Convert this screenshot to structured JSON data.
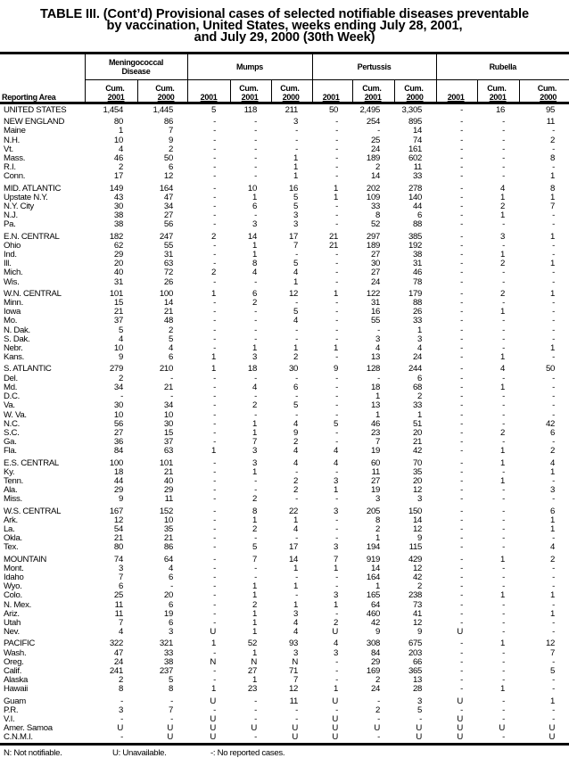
{
  "title": {
    "line1": "TABLE III. (Cont’d) Provisional cases of selected notifiable diseases preventable",
    "line2": "by vaccination, United States, weeks ending July 28, 2001,",
    "line3": "and July 29, 2000 (30th Week)"
  },
  "table": {
    "area_header": "Reporting Area",
    "disease_groups": [
      {
        "label": "Meningococcal Disease",
        "sub": [
          [
            "Cum.",
            "2001"
          ],
          [
            "Cum.",
            "2000"
          ]
        ]
      },
      {
        "label": "Mumps",
        "sub": [
          [
            "",
            "2001"
          ],
          [
            "Cum.",
            "2001"
          ],
          [
            "Cum.",
            "2000"
          ]
        ]
      },
      {
        "label": "Pertussis",
        "sub": [
          [
            "",
            "2001"
          ],
          [
            "Cum.",
            "2001"
          ],
          [
            "Cum.",
            "2000"
          ]
        ]
      },
      {
        "label": "Rubella",
        "sub": [
          [
            "",
            "2001"
          ],
          [
            "Cum.",
            "2001"
          ],
          [
            "Cum.",
            "2000"
          ]
        ]
      }
    ],
    "groups": [
      [
        [
          "UNITED STATES",
          "1,454",
          "1,445",
          "5",
          "118",
          "211",
          "50",
          "2,495",
          "3,305",
          "-",
          "16",
          "95"
        ]
      ],
      [
        [
          "NEW ENGLAND",
          "80",
          "86",
          "-",
          "-",
          "3",
          "-",
          "254",
          "895",
          "-",
          "-",
          "11"
        ],
        [
          "Maine",
          "1",
          "7",
          "-",
          "-",
          "-",
          "-",
          "-",
          "14",
          "-",
          "-",
          "-"
        ],
        [
          "N.H.",
          "10",
          "9",
          "-",
          "-",
          "-",
          "-",
          "25",
          "74",
          "-",
          "-",
          "2"
        ],
        [
          "Vt.",
          "4",
          "2",
          "-",
          "-",
          "-",
          "-",
          "24",
          "161",
          "-",
          "-",
          "-"
        ],
        [
          "Mass.",
          "46",
          "50",
          "-",
          "-",
          "1",
          "-",
          "189",
          "602",
          "-",
          "-",
          "8"
        ],
        [
          "R.I.",
          "2",
          "6",
          "-",
          "-",
          "1",
          "-",
          "2",
          "11",
          "-",
          "-",
          "-"
        ],
        [
          "Conn.",
          "17",
          "12",
          "-",
          "-",
          "1",
          "-",
          "14",
          "33",
          "-",
          "-",
          "1"
        ]
      ],
      [
        [
          "MID. ATLANTIC",
          "149",
          "164",
          "-",
          "10",
          "16",
          "1",
          "202",
          "278",
          "-",
          "4",
          "8"
        ],
        [
          "Upstate N.Y.",
          "43",
          "47",
          "-",
          "1",
          "5",
          "1",
          "109",
          "140",
          "-",
          "1",
          "1"
        ],
        [
          "N.Y. City",
          "30",
          "34",
          "-",
          "6",
          "5",
          "-",
          "33",
          "44",
          "-",
          "2",
          "7"
        ],
        [
          "N.J.",
          "38",
          "27",
          "-",
          "-",
          "3",
          "-",
          "8",
          "6",
          "-",
          "1",
          "-"
        ],
        [
          "Pa.",
          "38",
          "56",
          "-",
          "3",
          "3",
          "-",
          "52",
          "88",
          "-",
          "-",
          "-"
        ]
      ],
      [
        [
          "E.N. CENTRAL",
          "182",
          "247",
          "2",
          "14",
          "17",
          "21",
          "297",
          "385",
          "-",
          "3",
          "1"
        ],
        [
          "Ohio",
          "62",
          "55",
          "-",
          "1",
          "7",
          "21",
          "189",
          "192",
          "-",
          "-",
          "-"
        ],
        [
          "Ind.",
          "29",
          "31",
          "-",
          "1",
          "-",
          "-",
          "27",
          "38",
          "-",
          "1",
          "-"
        ],
        [
          "Ill.",
          "20",
          "63",
          "-",
          "8",
          "5",
          "-",
          "30",
          "31",
          "-",
          "2",
          "1"
        ],
        [
          "Mich.",
          "40",
          "72",
          "2",
          "4",
          "4",
          "-",
          "27",
          "46",
          "-",
          "-",
          "-"
        ],
        [
          "Wis.",
          "31",
          "26",
          "-",
          "-",
          "1",
          "-",
          "24",
          "78",
          "-",
          "-",
          "-"
        ]
      ],
      [
        [
          "W.N. CENTRAL",
          "101",
          "100",
          "1",
          "6",
          "12",
          "1",
          "122",
          "179",
          "-",
          "2",
          "1"
        ],
        [
          "Minn.",
          "15",
          "14",
          "-",
          "2",
          "-",
          "-",
          "31",
          "88",
          "-",
          "-",
          "-"
        ],
        [
          "Iowa",
          "21",
          "21",
          "-",
          "-",
          "5",
          "-",
          "16",
          "26",
          "-",
          "1",
          "-"
        ],
        [
          "Mo.",
          "37",
          "48",
          "-",
          "-",
          "4",
          "-",
          "55",
          "33",
          "-",
          "-",
          "-"
        ],
        [
          "N. Dak.",
          "5",
          "2",
          "-",
          "-",
          "-",
          "-",
          "-",
          "1",
          "-",
          "-",
          "-"
        ],
        [
          "S. Dak.",
          "4",
          "5",
          "-",
          "-",
          "-",
          "-",
          "3",
          "3",
          "-",
          "-",
          "-"
        ],
        [
          "Nebr.",
          "10",
          "4",
          "-",
          "1",
          "1",
          "1",
          "4",
          "4",
          "-",
          "-",
          "1"
        ],
        [
          "Kans.",
          "9",
          "6",
          "1",
          "3",
          "2",
          "-",
          "13",
          "24",
          "-",
          "1",
          "-"
        ]
      ],
      [
        [
          "S. ATLANTIC",
          "279",
          "210",
          "1",
          "18",
          "30",
          "9",
          "128",
          "244",
          "-",
          "4",
          "50"
        ],
        [
          "Del.",
          "2",
          "-",
          "-",
          "-",
          "-",
          "-",
          "-",
          "6",
          "-",
          "-",
          "-"
        ],
        [
          "Md.",
          "34",
          "21",
          "-",
          "4",
          "6",
          "-",
          "18",
          "68",
          "-",
          "1",
          "-"
        ],
        [
          "D.C.",
          "-",
          "-",
          "-",
          "-",
          "-",
          "-",
          "1",
          "2",
          "-",
          "-",
          "-"
        ],
        [
          "Va.",
          "30",
          "34",
          "-",
          "2",
          "5",
          "-",
          "13",
          "33",
          "-",
          "-",
          "-"
        ],
        [
          "W. Va.",
          "10",
          "10",
          "-",
          "-",
          "-",
          "-",
          "1",
          "1",
          "-",
          "-",
          "-"
        ],
        [
          "N.C.",
          "56",
          "30",
          "-",
          "1",
          "4",
          "5",
          "46",
          "51",
          "-",
          "-",
          "42"
        ],
        [
          "S.C.",
          "27",
          "15",
          "-",
          "1",
          "9",
          "-",
          "23",
          "20",
          "-",
          "2",
          "6"
        ],
        [
          "Ga.",
          "36",
          "37",
          "-",
          "7",
          "2",
          "-",
          "7",
          "21",
          "-",
          "-",
          "-"
        ],
        [
          "Fla.",
          "84",
          "63",
          "1",
          "3",
          "4",
          "4",
          "19",
          "42",
          "-",
          "1",
          "2"
        ]
      ],
      [
        [
          "E.S. CENTRAL",
          "100",
          "101",
          "-",
          "3",
          "4",
          "4",
          "60",
          "70",
          "-",
          "1",
          "4"
        ],
        [
          "Ky.",
          "18",
          "21",
          "-",
          "1",
          "-",
          "-",
          "11",
          "35",
          "-",
          "-",
          "1"
        ],
        [
          "Tenn.",
          "44",
          "40",
          "-",
          "-",
          "2",
          "3",
          "27",
          "20",
          "-",
          "1",
          "-"
        ],
        [
          "Ala.",
          "29",
          "29",
          "-",
          "-",
          "2",
          "1",
          "19",
          "12",
          "-",
          "-",
          "3"
        ],
        [
          "Miss.",
          "9",
          "11",
          "-",
          "2",
          "-",
          "-",
          "3",
          "3",
          "-",
          "-",
          "-"
        ]
      ],
      [
        [
          "W.S. CENTRAL",
          "167",
          "152",
          "-",
          "8",
          "22",
          "3",
          "205",
          "150",
          "-",
          "-",
          "6"
        ],
        [
          "Ark.",
          "12",
          "10",
          "-",
          "1",
          "1",
          "-",
          "8",
          "14",
          "-",
          "-",
          "1"
        ],
        [
          "La.",
          "54",
          "35",
          "-",
          "2",
          "4",
          "-",
          "2",
          "12",
          "-",
          "-",
          "1"
        ],
        [
          "Okla.",
          "21",
          "21",
          "-",
          "-",
          "-",
          "-",
          "1",
          "9",
          "-",
          "-",
          "-"
        ],
        [
          "Tex.",
          "80",
          "86",
          "-",
          "5",
          "17",
          "3",
          "194",
          "115",
          "-",
          "-",
          "4"
        ]
      ],
      [
        [
          "MOUNTAIN",
          "74",
          "64",
          "-",
          "7",
          "14",
          "7",
          "919",
          "429",
          "-",
          "1",
          "2"
        ],
        [
          "Mont.",
          "3",
          "4",
          "-",
          "-",
          "1",
          "1",
          "14",
          "12",
          "-",
          "-",
          "-"
        ],
        [
          "Idaho",
          "7",
          "6",
          "-",
          "-",
          "-",
          "-",
          "164",
          "42",
          "-",
          "-",
          "-"
        ],
        [
          "Wyo.",
          "6",
          "-",
          "-",
          "1",
          "1",
          "-",
          "1",
          "2",
          "-",
          "-",
          "-"
        ],
        [
          "Colo.",
          "25",
          "20",
          "-",
          "1",
          "-",
          "3",
          "165",
          "238",
          "-",
          "1",
          "1"
        ],
        [
          "N. Mex.",
          "11",
          "6",
          "-",
          "2",
          "1",
          "1",
          "64",
          "73",
          "-",
          "-",
          "-"
        ],
        [
          "Ariz.",
          "11",
          "19",
          "-",
          "1",
          "3",
          "-",
          "460",
          "41",
          "-",
          "-",
          "1"
        ],
        [
          "Utah",
          "7",
          "6",
          "-",
          "1",
          "4",
          "2",
          "42",
          "12",
          "-",
          "-",
          "-"
        ],
        [
          "Nev.",
          "4",
          "3",
          "U",
          "1",
          "4",
          "U",
          "9",
          "9",
          "U",
          "-",
          "-"
        ]
      ],
      [
        [
          "PACIFIC",
          "322",
          "321",
          "1",
          "52",
          "93",
          "4",
          "308",
          "675",
          "-",
          "1",
          "12"
        ],
        [
          "Wash.",
          "47",
          "33",
          "-",
          "1",
          "3",
          "3",
          "84",
          "203",
          "-",
          "-",
          "7"
        ],
        [
          "Oreg.",
          "24",
          "38",
          "N",
          "N",
          "N",
          "-",
          "29",
          "66",
          "-",
          "-",
          "-"
        ],
        [
          "Calif.",
          "241",
          "237",
          "-",
          "27",
          "71",
          "-",
          "169",
          "365",
          "-",
          "-",
          "5"
        ],
        [
          "Alaska",
          "2",
          "5",
          "-",
          "1",
          "7",
          "-",
          "2",
          "13",
          "-",
          "-",
          "-"
        ],
        [
          "Hawaii",
          "8",
          "8",
          "1",
          "23",
          "12",
          "1",
          "24",
          "28",
          "-",
          "1",
          "-"
        ]
      ],
      [
        [
          "Guam",
          "-",
          "-",
          "U",
          "-",
          "11",
          "U",
          "-",
          "3",
          "U",
          "-",
          "1"
        ],
        [
          "P.R.",
          "3",
          "7",
          "-",
          "-",
          "-",
          "-",
          "2",
          "5",
          "-",
          "-",
          "-"
        ],
        [
          "V.I.",
          "-",
          "-",
          "U",
          "-",
          "-",
          "U",
          "-",
          "-",
          "U",
          "-",
          "-"
        ],
        [
          "Amer. Samoa",
          "U",
          "U",
          "U",
          "U",
          "U",
          "U",
          "U",
          "U",
          "U",
          "U",
          "U"
        ],
        [
          "C.N.M.I.",
          "-",
          "U",
          "U",
          "-",
          "U",
          "U",
          "-",
          "U",
          "U",
          "-",
          "U"
        ]
      ]
    ]
  },
  "footnotes": {
    "n": "N: Not notifiable.",
    "u": "U: Unavailable.",
    "dash": "-: No reported cases."
  }
}
